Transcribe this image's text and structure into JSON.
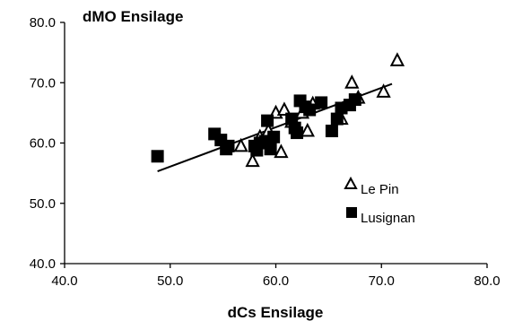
{
  "chart_data": {
    "type": "scatter",
    "title": "dMO Ensilage",
    "xlabel": "dCs Ensilage",
    "ylabel": "",
    "xlim": [
      40.0,
      80.0
    ],
    "ylim": [
      40.0,
      80.0
    ],
    "x_ticks": [
      "40.0",
      "50.0",
      "60.0",
      "70.0",
      "80.0"
    ],
    "y_ticks": [
      "40.0",
      "50.0",
      "60.0",
      "70.0",
      "80.0"
    ],
    "grid": false,
    "legend_position": "right",
    "series": [
      {
        "name": "Le Pin",
        "marker": "triangle-open",
        "points": [
          {
            "x": 56.7,
            "y": 59.5
          },
          {
            "x": 57.8,
            "y": 57.0
          },
          {
            "x": 58.5,
            "y": 61.0
          },
          {
            "x": 59.3,
            "y": 62.0
          },
          {
            "x": 60.0,
            "y": 65.0
          },
          {
            "x": 60.5,
            "y": 58.5
          },
          {
            "x": 60.8,
            "y": 65.5
          },
          {
            "x": 61.5,
            "y": 63.5
          },
          {
            "x": 62.5,
            "y": 65.0
          },
          {
            "x": 63.0,
            "y": 62.0
          },
          {
            "x": 63.5,
            "y": 66.5
          },
          {
            "x": 66.2,
            "y": 64.0
          },
          {
            "x": 67.2,
            "y": 70.0
          },
          {
            "x": 67.8,
            "y": 67.5
          },
          {
            "x": 70.2,
            "y": 68.5
          },
          {
            "x": 71.5,
            "y": 73.7
          }
        ]
      },
      {
        "name": "Lusignan",
        "marker": "square-filled",
        "points": [
          {
            "x": 48.8,
            "y": 57.8
          },
          {
            "x": 54.2,
            "y": 61.5
          },
          {
            "x": 54.8,
            "y": 60.5
          },
          {
            "x": 55.5,
            "y": 59.5
          },
          {
            "x": 55.3,
            "y": 59.0
          },
          {
            "x": 58.0,
            "y": 59.5
          },
          {
            "x": 58.2,
            "y": 58.8
          },
          {
            "x": 58.5,
            "y": 60.0
          },
          {
            "x": 59.0,
            "y": 60.3
          },
          {
            "x": 59.2,
            "y": 63.7
          },
          {
            "x": 59.5,
            "y": 59.0
          },
          {
            "x": 59.8,
            "y": 61.0
          },
          {
            "x": 61.5,
            "y": 64.0
          },
          {
            "x": 61.8,
            "y": 62.5
          },
          {
            "x": 62.0,
            "y": 61.7
          },
          {
            "x": 62.3,
            "y": 67.0
          },
          {
            "x": 62.8,
            "y": 66.0
          },
          {
            "x": 63.2,
            "y": 65.5
          },
          {
            "x": 64.3,
            "y": 66.7
          },
          {
            "x": 65.3,
            "y": 62.0
          },
          {
            "x": 65.8,
            "y": 64.0
          },
          {
            "x": 66.2,
            "y": 65.8
          },
          {
            "x": 67.0,
            "y": 66.3
          },
          {
            "x": 67.5,
            "y": 67.2
          }
        ]
      }
    ],
    "trendline": {
      "x": [
        48.8,
        71.0
      ],
      "y": [
        55.3,
        69.8
      ]
    }
  }
}
